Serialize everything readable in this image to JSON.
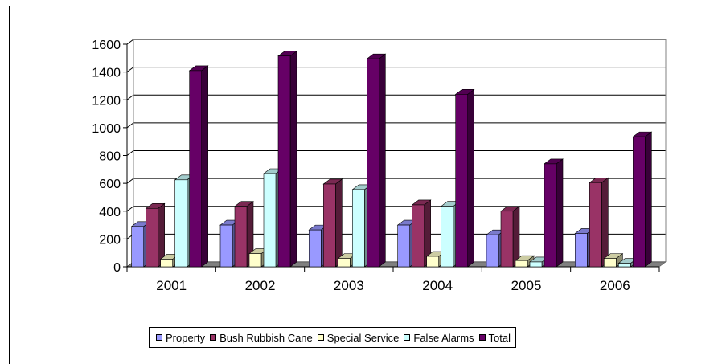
{
  "chart_data": {
    "type": "bar",
    "title": "",
    "xlabel": "",
    "ylabel": "",
    "categories": [
      "2001",
      "2002",
      "2003",
      "2004",
      "2005",
      "2006"
    ],
    "ylim": [
      0,
      1600
    ],
    "yticks": [
      "0",
      "200",
      "400",
      "600",
      "800",
      "1000",
      "1200",
      "1400",
      "1600"
    ],
    "grid": true,
    "legend_position": "bottom",
    "series": [
      {
        "name": "Property",
        "color": "#9999FF",
        "values": [
          290,
          300,
          265,
          300,
          230,
          240
        ]
      },
      {
        "name": "Bush Rubbish Cane",
        "color": "#993366",
        "values": [
          420,
          435,
          595,
          445,
          400,
          605
        ]
      },
      {
        "name": "Special Service",
        "color": "#FFFFCC",
        "values": [
          55,
          95,
          60,
          75,
          45,
          60
        ]
      },
      {
        "name": "False Alarms",
        "color": "#CCFFFF",
        "values": [
          625,
          670,
          555,
          435,
          35,
          25
        ]
      },
      {
        "name": "Total",
        "color": "#660066",
        "values": [
          1410,
          1515,
          1495,
          1240,
          740,
          935
        ]
      }
    ]
  }
}
